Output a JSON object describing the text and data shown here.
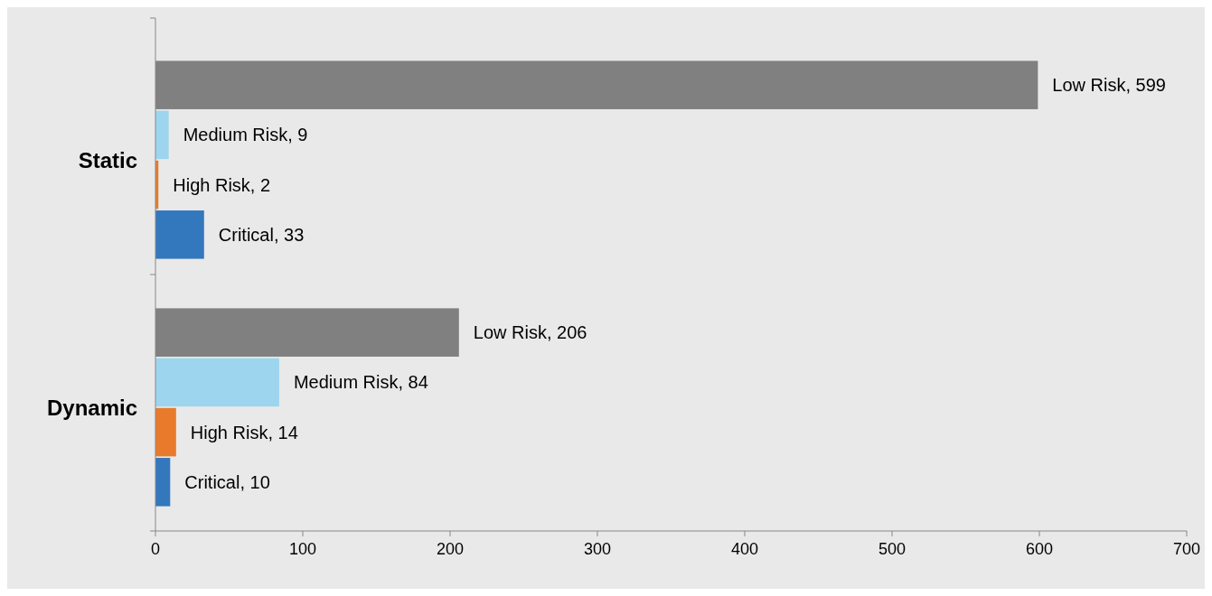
{
  "chart_data": {
    "type": "bar",
    "orientation": "horizontal",
    "categories": [
      "Static",
      "Dynamic"
    ],
    "series": [
      {
        "color": "#808080",
        "values": [
          599,
          206
        ],
        "value_labels": [
          "Low Risk, 599",
          "Low Risk, 206"
        ]
      },
      {
        "color": "#9dd5ee",
        "values": [
          9,
          84
        ],
        "value_labels": [
          "Medium Risk, 9",
          "Medium Risk, 84"
        ]
      },
      {
        "color": "#e87b2b",
        "values": [
          2,
          14
        ],
        "value_labels": [
          "High Risk, 2",
          "High Risk, 14"
        ]
      },
      {
        "color": "#3378bd",
        "values": [
          33,
          10
        ],
        "value_labels": [
          "Critical, 33",
          "Critical, 10"
        ]
      }
    ],
    "xlim": [
      0,
      700
    ],
    "xticks": [
      0,
      100,
      200,
      300,
      400,
      500,
      600,
      700
    ],
    "grid": false,
    "legend": false
  }
}
